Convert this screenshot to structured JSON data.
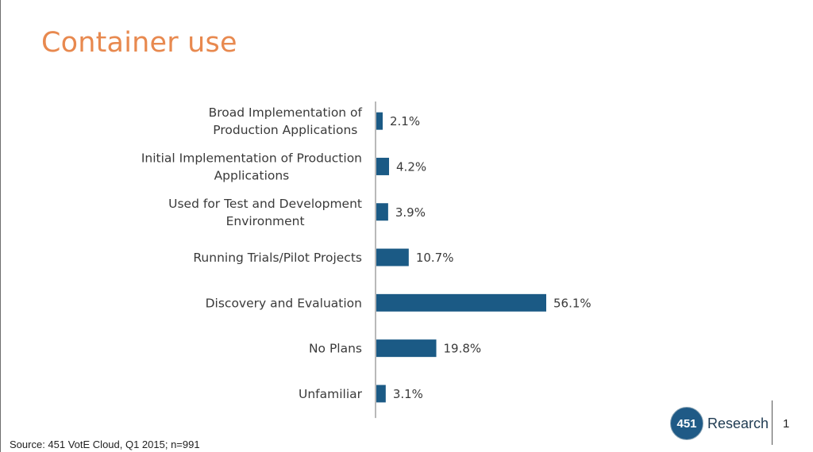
{
  "slide": {
    "title": "Container use",
    "source": "Source: 451 VotE Cloud, Q1 2015; n=991",
    "brand": {
      "logo_text": "451",
      "name": "Research"
    },
    "page_number": "1"
  },
  "colors": {
    "title": "#e8894f",
    "bar": "#1b5a85",
    "axis": "#8a8a8a",
    "logo": "#1f5a86"
  },
  "chart_data": {
    "type": "bar",
    "orientation": "horizontal",
    "categories": [
      [
        "Broad Implementation of",
        "Production Applications"
      ],
      [
        "Initial Implementation of Production",
        "Applications"
      ],
      [
        "Used for Test and Development",
        "Environment"
      ],
      [
        "Running Trials/Pilot Projects"
      ],
      [
        "Discovery and Evaluation"
      ],
      [
        "No Plans"
      ],
      [
        "Unfamiliar"
      ]
    ],
    "values": [
      2.1,
      4.2,
      3.9,
      10.7,
      56.1,
      19.8,
      3.1
    ],
    "value_labels": [
      "2.1%",
      "4.2%",
      "3.9%",
      "10.7%",
      "56.1%",
      "19.8%",
      "3.1%"
    ],
    "unit": "%",
    "xlim": [
      0,
      56.1
    ],
    "grid": false,
    "legend": "none"
  }
}
